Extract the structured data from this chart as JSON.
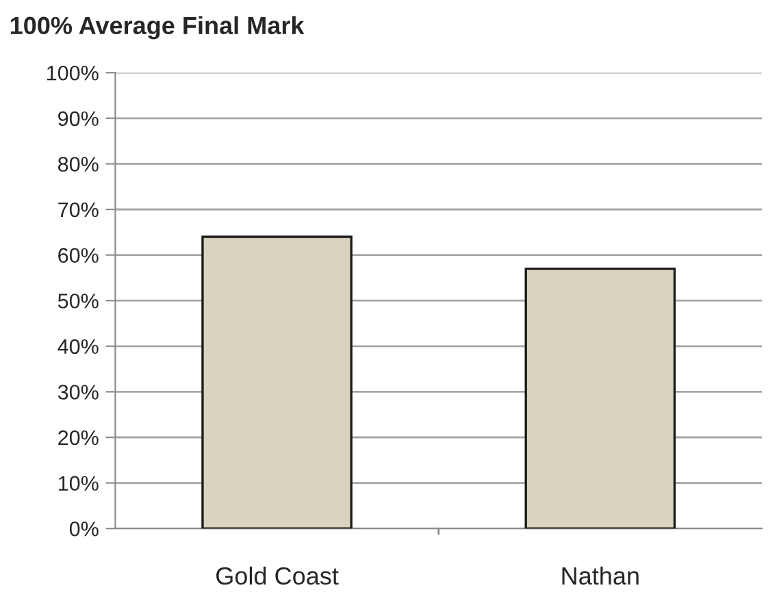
{
  "chart_data": {
    "type": "bar",
    "title": "100% Average Final Mark",
    "categories": [
      "Gold Coast",
      "Nathan"
    ],
    "values": [
      64,
      57
    ],
    "color": "#d9d3bf",
    "ylim": [
      0,
      100
    ],
    "yticks": [
      {
        "value": 0,
        "label": "0%"
      },
      {
        "value": 10,
        "label": "10%"
      },
      {
        "value": 20,
        "label": "20%"
      },
      {
        "value": 30,
        "label": "30%"
      },
      {
        "value": 40,
        "label": "40%"
      },
      {
        "value": 50,
        "label": "50%"
      },
      {
        "value": 60,
        "label": "60%"
      },
      {
        "value": 70,
        "label": "70%"
      },
      {
        "value": 80,
        "label": "80%"
      },
      {
        "value": 90,
        "label": "90%"
      },
      {
        "value": 100,
        "label": "100%"
      }
    ],
    "grid": "y",
    "legend": false
  }
}
